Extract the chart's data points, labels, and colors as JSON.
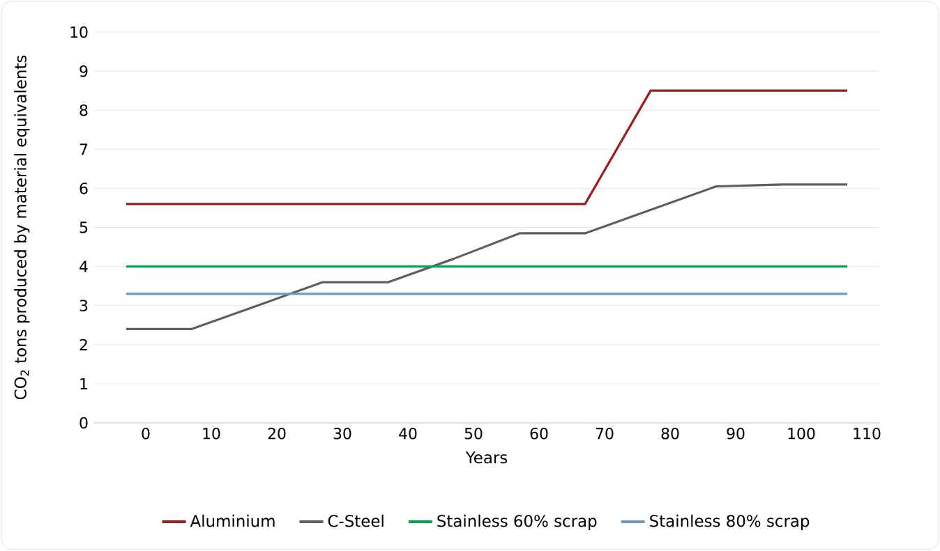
{
  "chart_data": {
    "type": "line",
    "xlabel": "Years",
    "ylabel": "CO$_{2}$ tons produced by material equivalents",
    "categories": [
      "0",
      "10",
      "20",
      "30",
      "40",
      "50",
      "60",
      "70",
      "80",
      "90",
      "100",
      "110"
    ],
    "series": [
      {
        "name": "Aluminium",
        "color": "#9b1b1f",
        "values": [
          5.6,
          5.6,
          5.6,
          5.6,
          5.6,
          5.6,
          5.6,
          5.6,
          8.5,
          8.5,
          8.5,
          8.5
        ]
      },
      {
        "name": "C-Steel",
        "color": "#5f5f5f",
        "values": [
          2.4,
          2.4,
          3.0,
          3.6,
          3.6,
          4.2,
          4.85,
          4.85,
          5.45,
          6.05,
          6.1,
          6.1
        ]
      },
      {
        "name": "Stainless 60% scrap",
        "color": "#00a651",
        "values": [
          4.0,
          4.0,
          4.0,
          4.0,
          4.0,
          4.0,
          4.0,
          4.0,
          4.0,
          4.0,
          4.0,
          4.0
        ]
      },
      {
        "name": "Stainless 80% scrap",
        "color": "#6f9ac4",
        "values": [
          3.3,
          3.3,
          3.3,
          3.3,
          3.3,
          3.3,
          3.3,
          3.3,
          3.3,
          3.3,
          3.3,
          3.3
        ]
      }
    ],
    "ylim": [
      0,
      10
    ],
    "yticks": [
      0,
      1,
      2,
      3,
      4,
      5,
      6,
      7,
      8,
      9,
      10
    ],
    "grid": "y",
    "legend": "bottom",
    "marker": "none",
    "line_style": "solid"
  }
}
